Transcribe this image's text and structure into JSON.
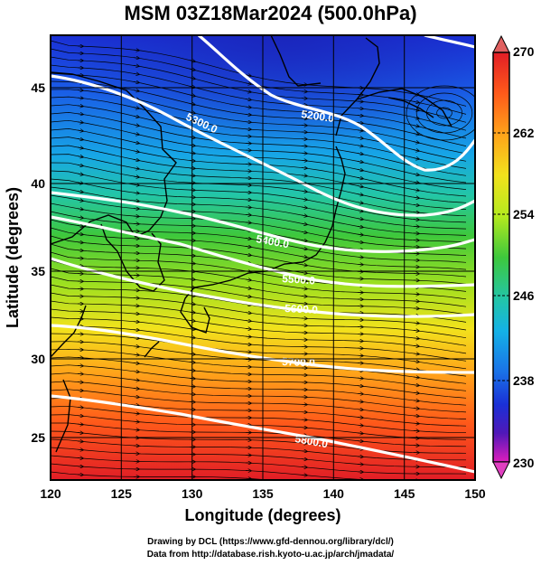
{
  "title": "MSM 03Z18Mar2024 (500.0hPa)",
  "axes": {
    "xlabel": "Longitude (degrees)",
    "ylabel": "Latitude  (degrees)",
    "x_ticks": [
      "120",
      "125",
      "130",
      "135",
      "140",
      "145",
      "150"
    ],
    "y_ticks": [
      "45",
      "40",
      "35",
      "30",
      "25"
    ]
  },
  "colorbar": {
    "ticks": [
      "270",
      "262",
      "254",
      "246",
      "238",
      "230"
    ],
    "colors": [
      "#e11d26",
      "#ff5a1a",
      "#ffa31a",
      "#f2e21c",
      "#b4ea1e",
      "#3ec83c",
      "#23c6a6",
      "#14b2e6",
      "#1a72e8",
      "#1a30d6",
      "#5018b8",
      "#9c12b8",
      "#dd1dbd"
    ]
  },
  "contours": [
    {
      "label": "5200.0"
    },
    {
      "label": "5300.0"
    },
    {
      "label": "5400.0"
    },
    {
      "label": "5500.0"
    },
    {
      "label": "5600.0"
    },
    {
      "label": "5700.0"
    },
    {
      "label": "5800.0"
    }
  ],
  "credits": {
    "line1": "Drawing by DCL (https://www.gfd-dennou.org/library/dcl/)",
    "line2": "Data from http://database.rish.kyoto-u.ac.jp/arch/jmadata/"
  }
}
